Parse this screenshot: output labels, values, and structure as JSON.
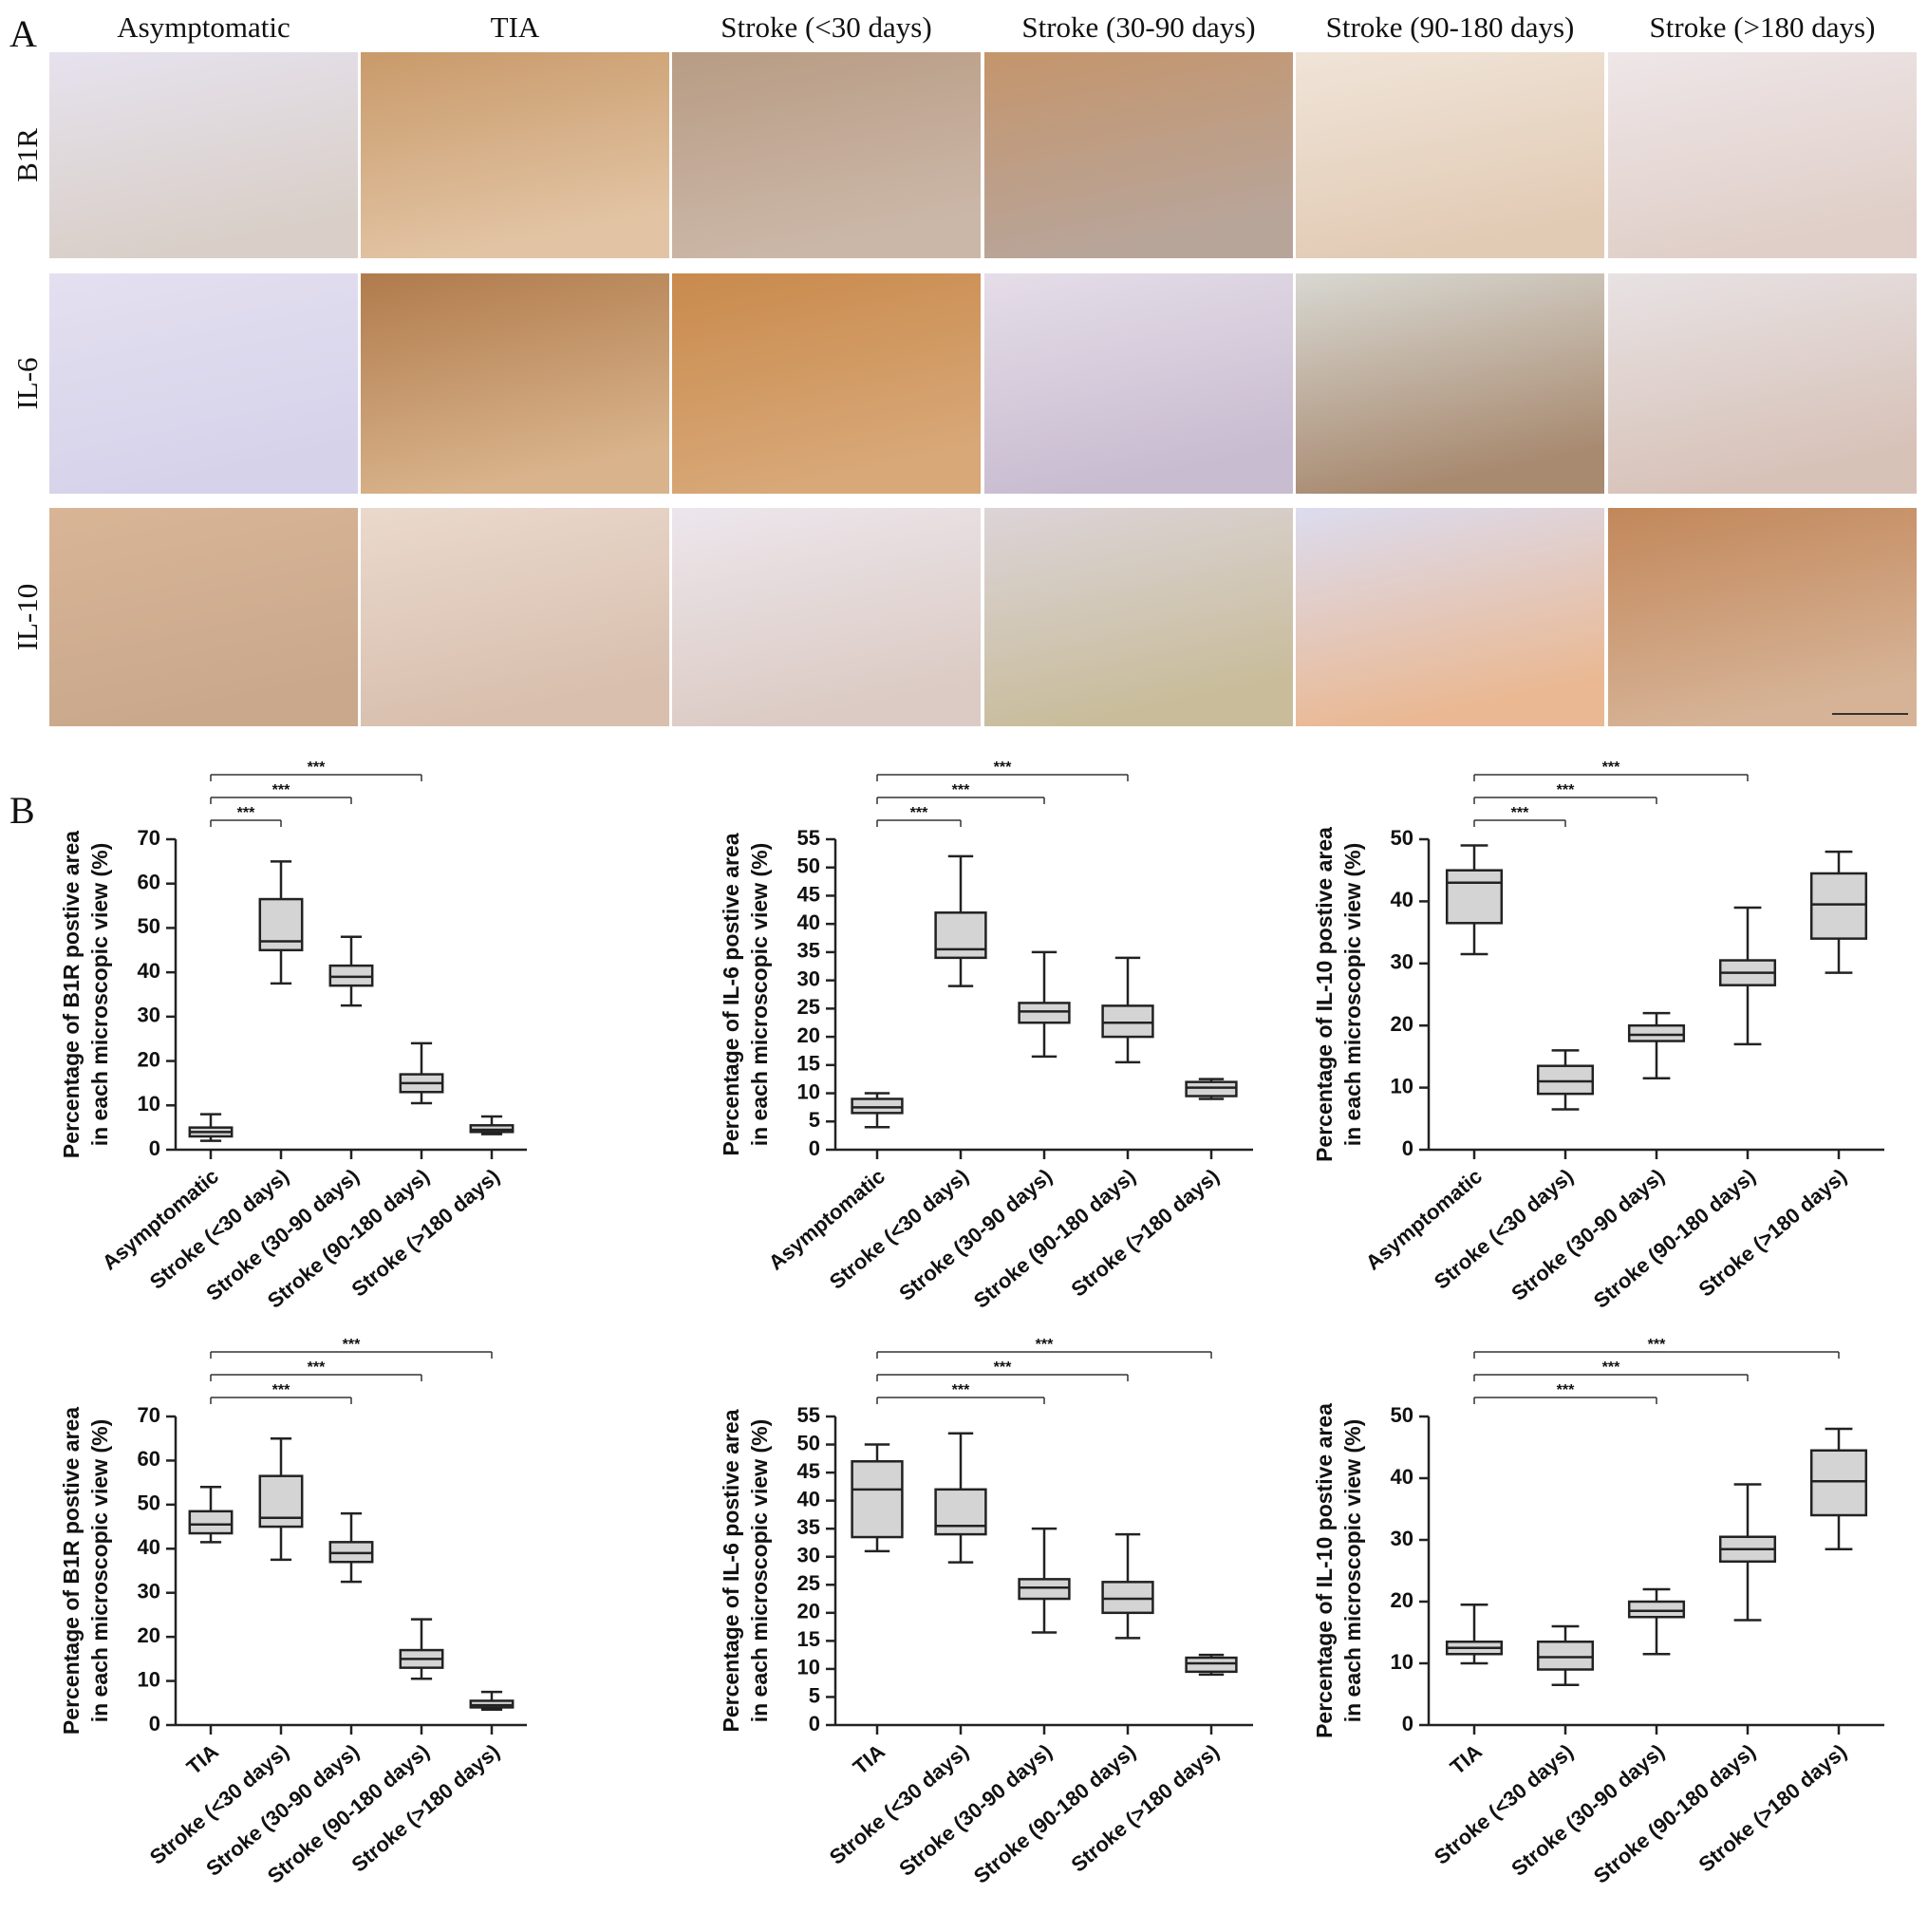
{
  "panel_a": {
    "label": "A",
    "columns": [
      "Asymptomatic",
      "TIA",
      "Stroke (<30 days)",
      "Stroke (30-90 days)",
      "Stroke (90-180 days)",
      "Stroke (>180 days)"
    ],
    "rows": [
      "B1R",
      "IL-6",
      "IL-10"
    ]
  },
  "panel_b": {
    "label": "B"
  },
  "chart_data": [
    {
      "type": "box",
      "ylabel": [
        "Percentage of B1R postive area",
        "in each microscopic  view (%)"
      ],
      "categories": [
        "Asymptomatic",
        "Stroke (<30 days)",
        "Stroke (30-90 days)",
        "Stroke (90-180 days)",
        "Stroke (>180 days)"
      ],
      "values": [
        [
          2,
          3,
          4,
          5,
          8
        ],
        [
          37.5,
          45,
          47,
          56.5,
          65
        ],
        [
          32.5,
          37,
          39,
          41.5,
          48
        ],
        [
          10.5,
          13,
          15,
          17,
          24
        ],
        [
          3.5,
          4,
          4.5,
          5.5,
          7.5
        ]
      ],
      "ylim": [
        0,
        70
      ],
      "yticks": [
        0,
        10,
        20,
        30,
        40,
        50,
        60,
        70
      ],
      "annotations": [
        {
          "label": "***",
          "span": [
            0,
            1
          ]
        },
        {
          "label": "***",
          "span": [
            0,
            2
          ]
        },
        {
          "label": "***",
          "span": [
            0,
            3
          ]
        }
      ]
    },
    {
      "type": "box",
      "ylabel": [
        "Percentage of IL-6 postive area",
        "in each microscopic  view (%)"
      ],
      "categories": [
        "Asymptomatic",
        "Stroke (<30 days)",
        "Stroke (30-90 days)",
        "Stroke (90-180 days)",
        "Stroke (>180 days)"
      ],
      "values": [
        [
          4,
          6.5,
          7.5,
          9,
          10
        ],
        [
          29,
          34,
          35.5,
          42,
          52
        ],
        [
          16.5,
          22.5,
          24.5,
          26,
          35
        ],
        [
          15.5,
          20,
          22.5,
          25.5,
          34
        ],
        [
          9,
          9.5,
          11,
          12,
          12.5
        ]
      ],
      "ylim": [
        0,
        55
      ],
      "yticks": [
        0,
        5,
        10,
        15,
        20,
        25,
        30,
        35,
        40,
        45,
        50,
        55
      ],
      "annotations": [
        {
          "label": "***",
          "span": [
            0,
            1
          ]
        },
        {
          "label": "***",
          "span": [
            0,
            2
          ]
        },
        {
          "label": "***",
          "span": [
            0,
            3
          ]
        }
      ]
    },
    {
      "type": "box",
      "ylabel": [
        "Percentage of IL-10 postive area",
        "in each microscopic  view (%)"
      ],
      "categories": [
        "Asymptomatic",
        "Stroke (<30 days)",
        "Stroke (30-90 days)",
        "Stroke (90-180 days)",
        "Stroke (>180 days)"
      ],
      "values": [
        [
          31.5,
          36.5,
          43,
          45,
          49
        ],
        [
          6.5,
          9,
          11,
          13.5,
          16
        ],
        [
          11.5,
          17.5,
          18.5,
          20,
          22
        ],
        [
          17,
          26.5,
          28.5,
          30.5,
          39
        ],
        [
          28.5,
          34,
          39.5,
          44.5,
          48
        ]
      ],
      "ylim": [
        0,
        50
      ],
      "yticks": [
        0,
        10,
        20,
        30,
        40,
        50
      ],
      "annotations": [
        {
          "label": "***",
          "span": [
            0,
            1
          ]
        },
        {
          "label": "***",
          "span": [
            0,
            2
          ]
        },
        {
          "label": "***",
          "span": [
            0,
            3
          ]
        }
      ]
    },
    {
      "type": "box",
      "ylabel": [
        "Percentage of B1R postive area",
        "in each microscopic  view (%)"
      ],
      "categories": [
        "TIA",
        "Stroke (<30 days)",
        "Stroke (30-90 days)",
        "Stroke (90-180 days)",
        "Stroke (>180 days)"
      ],
      "values": [
        [
          41.5,
          43.5,
          45.5,
          48.5,
          54
        ],
        [
          37.5,
          45,
          47,
          56.5,
          65
        ],
        [
          32.5,
          37,
          39,
          41.5,
          48
        ],
        [
          10.5,
          13,
          15,
          17,
          24
        ],
        [
          3.5,
          4,
          4.5,
          5.5,
          7.5
        ]
      ],
      "ylim": [
        0,
        70
      ],
      "yticks": [
        0,
        10,
        20,
        30,
        40,
        50,
        60,
        70
      ],
      "annotations": [
        {
          "label": "***",
          "span": [
            0,
            2
          ]
        },
        {
          "label": "***",
          "span": [
            0,
            3
          ]
        },
        {
          "label": "***",
          "span": [
            0,
            4
          ]
        }
      ]
    },
    {
      "type": "box",
      "ylabel": [
        "Percentage of IL-6 postive area",
        "in each microscopic  view (%)"
      ],
      "categories": [
        "TIA",
        "Stroke (<30 days)",
        "Stroke (30-90 days)",
        "Stroke (90-180 days)",
        "Stroke (>180 days)"
      ],
      "values": [
        [
          31,
          33.5,
          42,
          47,
          50
        ],
        [
          29,
          34,
          35.5,
          42,
          52
        ],
        [
          16.5,
          22.5,
          24.5,
          26,
          35
        ],
        [
          15.5,
          20,
          22.5,
          25.5,
          34
        ],
        [
          9,
          9.5,
          11,
          12,
          12.5
        ]
      ],
      "ylim": [
        0,
        55
      ],
      "yticks": [
        0,
        5,
        10,
        15,
        20,
        25,
        30,
        35,
        40,
        45,
        50,
        55
      ],
      "annotations": [
        {
          "label": "***",
          "span": [
            0,
            2
          ]
        },
        {
          "label": "***",
          "span": [
            0,
            3
          ]
        },
        {
          "label": "***",
          "span": [
            0,
            4
          ]
        }
      ]
    },
    {
      "type": "box",
      "ylabel": [
        "Percentage of IL-10 postive area",
        "in each microscopic  view (%)"
      ],
      "categories": [
        "TIA",
        "Stroke (<30 days)",
        "Stroke (30-90 days)",
        "Stroke (90-180 days)",
        "Stroke (>180 days)"
      ],
      "values": [
        [
          10,
          11.5,
          12.5,
          13.5,
          19.5
        ],
        [
          6.5,
          9,
          11,
          13.5,
          16
        ],
        [
          11.5,
          17.5,
          18.5,
          20,
          22
        ],
        [
          17,
          26.5,
          28.5,
          30.5,
          39
        ],
        [
          28.5,
          34,
          39.5,
          44.5,
          48
        ]
      ],
      "ylim": [
        0,
        50
      ],
      "yticks": [
        0,
        10,
        20,
        30,
        40,
        50
      ],
      "annotations": [
        {
          "label": "***",
          "span": [
            0,
            2
          ]
        },
        {
          "label": "***",
          "span": [
            0,
            3
          ]
        },
        {
          "label": "***",
          "span": [
            0,
            4
          ]
        }
      ]
    }
  ]
}
